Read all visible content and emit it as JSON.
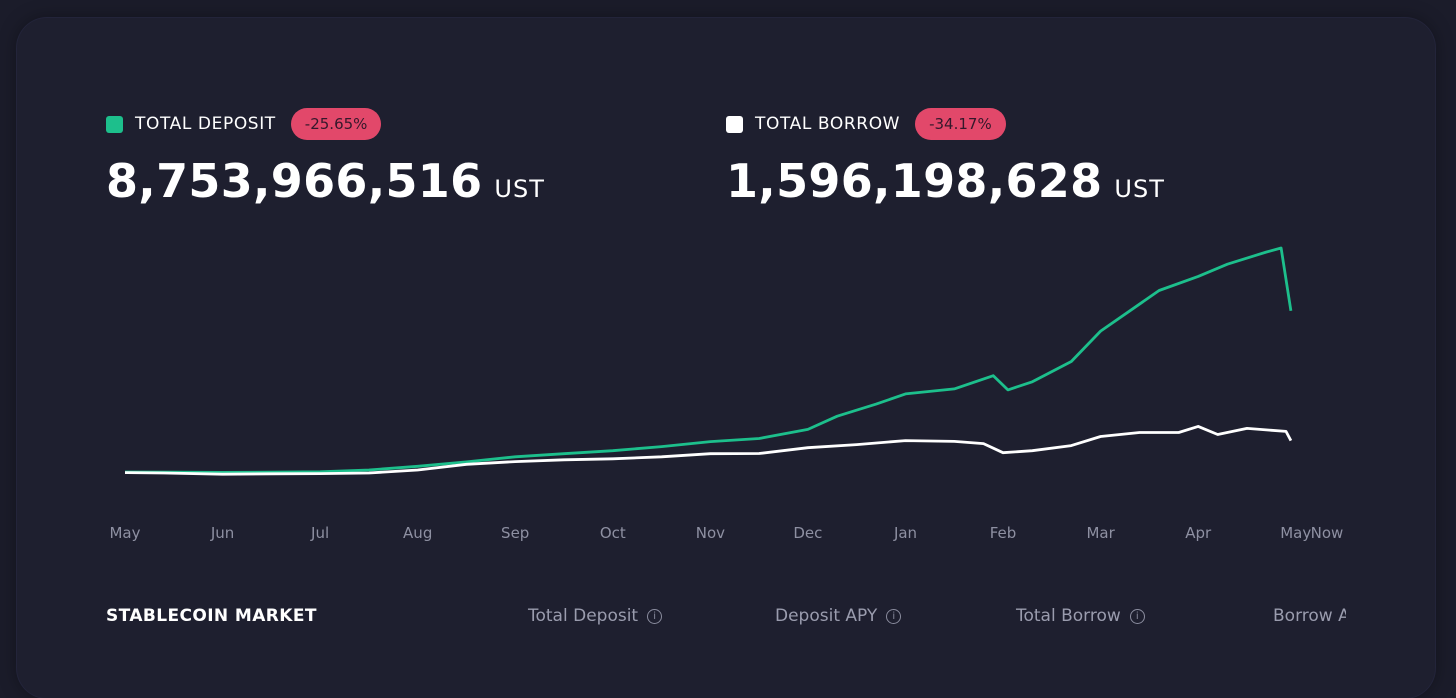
{
  "stats": {
    "deposit": {
      "label": "TOTAL DEPOSIT",
      "change": "-25.65%",
      "value": "8,753,966,516",
      "unit": "UST",
      "color": "#1dbf8c"
    },
    "borrow": {
      "label": "TOTAL BORROW",
      "change": "-34.17%",
      "value": "1,596,198,628",
      "unit": "UST",
      "color": "#ffffff"
    }
  },
  "colors": {
    "background": "#1b1c2a",
    "card": "#1e1f2f",
    "badge": "#e2486a",
    "axis_text": "#8e90a2"
  },
  "chart_data": {
    "type": "line",
    "title": "",
    "xlabel": "",
    "ylabel": "",
    "x_ticks": [
      "May",
      "Jun",
      "Jul",
      "Aug",
      "Sep",
      "Oct",
      "Nov",
      "Dec",
      "Jan",
      "Feb",
      "Mar",
      "Apr",
      "May",
      "Now"
    ],
    "x_range": [
      0,
      12.3
    ],
    "ylim": [
      0,
      11000000000
    ],
    "grid": false,
    "legend": "top",
    "series": [
      {
        "name": "TOTAL DEPOSIT",
        "color": "#1dbf8c",
        "points": [
          [
            0,
            50000000
          ],
          [
            0.5,
            40000000
          ],
          [
            1,
            30000000
          ],
          [
            1.5,
            40000000
          ],
          [
            2,
            60000000
          ],
          [
            2.5,
            150000000
          ],
          [
            3,
            330000000
          ],
          [
            3.5,
            550000000
          ],
          [
            4,
            800000000
          ],
          [
            4.5,
            950000000
          ],
          [
            5,
            1100000000
          ],
          [
            5.5,
            1300000000
          ],
          [
            6,
            1550000000
          ],
          [
            6.5,
            1700000000
          ],
          [
            7,
            2150000000
          ],
          [
            7.3,
            2800000000
          ],
          [
            7.7,
            3400000000
          ],
          [
            8,
            3900000000
          ],
          [
            8.5,
            4150000000
          ],
          [
            8.9,
            4800000000
          ],
          [
            9.05,
            4100000000
          ],
          [
            9.3,
            4500000000
          ],
          [
            9.7,
            5500000000
          ],
          [
            10,
            7000000000
          ],
          [
            10.3,
            8000000000
          ],
          [
            10.6,
            9000000000
          ],
          [
            11,
            9700000000
          ],
          [
            11.3,
            10300000000
          ],
          [
            11.7,
            10900000000
          ],
          [
            11.85,
            11100000000
          ],
          [
            11.95,
            8000000000
          ]
        ]
      },
      {
        "name": "TOTAL BORROW",
        "color": "#ffffff",
        "points": [
          [
            0,
            20000000
          ],
          [
            0.4,
            0
          ],
          [
            1,
            -60000000
          ],
          [
            1.5,
            -40000000
          ],
          [
            2,
            -30000000
          ],
          [
            2.5,
            0
          ],
          [
            3,
            150000000
          ],
          [
            3.5,
            430000000
          ],
          [
            4,
            560000000
          ],
          [
            4.5,
            650000000
          ],
          [
            5,
            700000000
          ],
          [
            5.5,
            800000000
          ],
          [
            6,
            950000000
          ],
          [
            6.5,
            960000000
          ],
          [
            7,
            1250000000
          ],
          [
            7.5,
            1400000000
          ],
          [
            8,
            1600000000
          ],
          [
            8.5,
            1560000000
          ],
          [
            8.8,
            1450000000
          ],
          [
            9,
            1000000000
          ],
          [
            9.3,
            1100000000
          ],
          [
            9.7,
            1350000000
          ],
          [
            10,
            1800000000
          ],
          [
            10.4,
            2000000000
          ],
          [
            10.8,
            2000000000
          ],
          [
            11,
            2300000000
          ],
          [
            11.2,
            1900000000
          ],
          [
            11.5,
            2200000000
          ],
          [
            11.9,
            2050000000
          ],
          [
            11.95,
            1600000000
          ]
        ]
      }
    ]
  },
  "table": {
    "title": "STABLECOIN MARKET",
    "columns": [
      "Total Deposit",
      "Deposit APY",
      "Total Borrow",
      "Borrow APY"
    ],
    "info_glyph": "i"
  }
}
